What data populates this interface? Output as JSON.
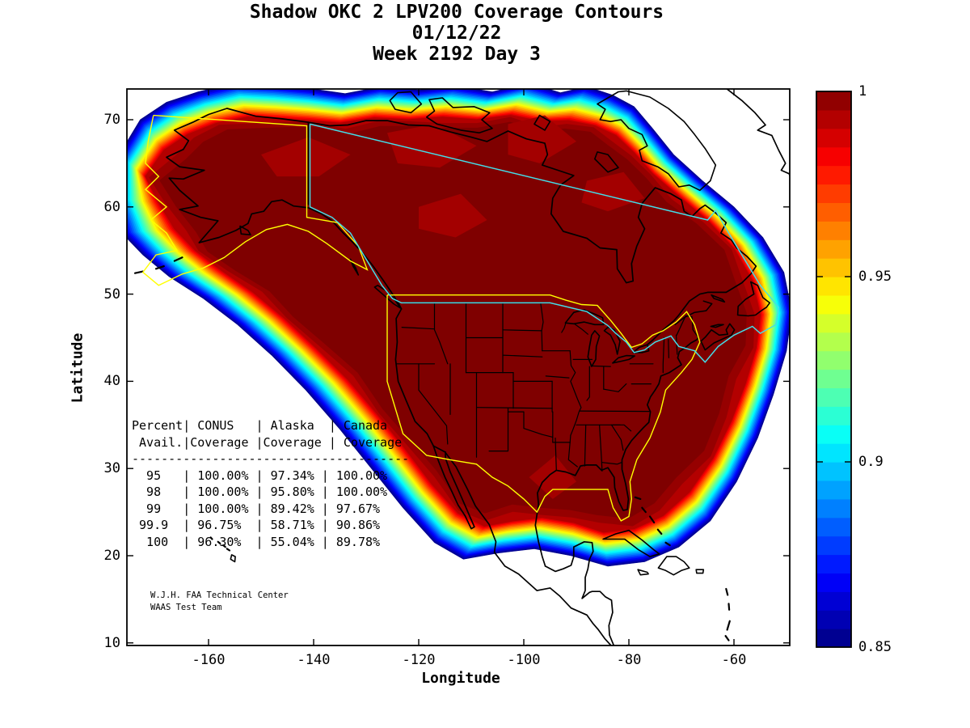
{
  "title": {
    "line1": "Shadow OKC 2 LPV200 Coverage Contours",
    "line2": "01/12/22",
    "line3": "Week 2192 Day 3"
  },
  "axes": {
    "xlabel": "Longitude",
    "ylabel": "Latitude",
    "xticks": [
      -160,
      -140,
      -120,
      -100,
      -80,
      -60
    ],
    "yticks": [
      70,
      60,
      50,
      40,
      30,
      20,
      10
    ],
    "xlim": [
      -175.5,
      -49.4
    ],
    "ylim": [
      9.7,
      73.5
    ]
  },
  "colorbar": {
    "min": 0.85,
    "max": 1.0,
    "n_bands": 30,
    "colormap": "jet",
    "ticks": [
      "1",
      "0.95",
      "0.9",
      "0.85"
    ],
    "tick_values": [
      1,
      0.95,
      0.9,
      0.85
    ]
  },
  "coverage_table": {
    "header_row1": [
      "Percent",
      "CONUS",
      "Alaska",
      "Canada"
    ],
    "header_row2": [
      "Avail.",
      "Coverage",
      "Coverage",
      "Coverage"
    ],
    "rows": [
      [
        "95",
        "100.00%",
        "97.34%",
        "100.00%"
      ],
      [
        "98",
        "100.00%",
        "95.80%",
        "100.00%"
      ],
      [
        "99",
        "100.00%",
        "89.42%",
        "97.67%"
      ],
      [
        "99.9",
        "96.75%",
        "58.71%",
        "90.86%"
      ],
      [
        "100",
        "96.30%",
        "55.04%",
        "89.78%"
      ]
    ]
  },
  "attribution": {
    "line1": "W.J.H. FAA Technical Center",
    "line2": "WAAS Test Team"
  },
  "chart_data": {
    "type": "filled_contour_map",
    "title": "Shadow OKC 2 LPV200 Coverage Contours",
    "date": "01/12/22",
    "week": 2192,
    "day": 3,
    "xlabel": "Longitude",
    "ylabel": "Latitude",
    "xlim": [
      -175.5,
      -49.4
    ],
    "ylim": [
      9.7,
      73.5
    ],
    "levels": {
      "min": 0.85,
      "max": 1.0,
      "step": 0.005
    },
    "colormap": "jet",
    "legend_position": "right-colorbar",
    "region_boundaries": [
      {
        "name": "CONUS",
        "color": "#FFFF00"
      },
      {
        "name": "Alaska",
        "color": "#FFFF00"
      },
      {
        "name": "Canada",
        "color": "#44DDE8"
      }
    ],
    "coverage_outer_contour": [
      [
        -177,
        66
      ],
      [
        -173,
        70
      ],
      [
        -168,
        72
      ],
      [
        -162,
        73.2
      ],
      [
        -155,
        74.2
      ],
      [
        -148,
        74
      ],
      [
        -141,
        73.6
      ],
      [
        -134,
        73
      ],
      [
        -127,
        73.8
      ],
      [
        -120,
        73.4
      ],
      [
        -113,
        73.9
      ],
      [
        -106,
        73.2
      ],
      [
        -99,
        74.2
      ],
      [
        -93,
        73.1
      ],
      [
        -88,
        73.8
      ],
      [
        -83,
        72.8
      ],
      [
        -79,
        71.5
      ],
      [
        -75.5,
        69
      ],
      [
        -71.5,
        66
      ],
      [
        -66,
        63
      ],
      [
        -60,
        60
      ],
      [
        -54.5,
        56.5
      ],
      [
        -50.5,
        52.5
      ],
      [
        -49,
        48
      ],
      [
        -50,
        43.5
      ],
      [
        -52.5,
        38.5
      ],
      [
        -55.5,
        33.5
      ],
      [
        -59.5,
        28.5
      ],
      [
        -64.5,
        24
      ],
      [
        -70.5,
        21
      ],
      [
        -77,
        19.3
      ],
      [
        -84,
        18.8
      ],
      [
        -91,
        20
      ],
      [
        -98,
        20.8
      ],
      [
        -105,
        20.3
      ],
      [
        -111.5,
        19.6
      ],
      [
        -117,
        21.5
      ],
      [
        -123,
        25.5
      ],
      [
        -129,
        30
      ],
      [
        -135,
        34.5
      ],
      [
        -141.5,
        39
      ],
      [
        -148,
        43
      ],
      [
        -154.5,
        46.5
      ],
      [
        -161,
        49.5
      ],
      [
        -167.5,
        52
      ],
      [
        -172.5,
        54.5
      ],
      [
        -176.5,
        57
      ],
      [
        -178.5,
        61
      ]
    ],
    "coverage_inner_contour": [
      [
        -172,
        63.5
      ],
      [
        -168.5,
        66.5
      ],
      [
        -164,
        68.3
      ],
      [
        -158.5,
        69.6
      ],
      [
        -152.5,
        70.3
      ],
      [
        -146.5,
        70.1
      ],
      [
        -141,
        69.9
      ],
      [
        -135,
        69.6
      ],
      [
        -128.5,
        70.2
      ],
      [
        -122,
        70
      ],
      [
        -115.5,
        70.3
      ],
      [
        -109,
        70
      ],
      [
        -102.5,
        70.5
      ],
      [
        -96.5,
        69.8
      ],
      [
        -91.5,
        69.9
      ],
      [
        -86.5,
        69.3
      ],
      [
        -82.5,
        68.2
      ],
      [
        -79,
        66.2
      ],
      [
        -75.5,
        63.8
      ],
      [
        -70.5,
        61.2
      ],
      [
        -65,
        58.4
      ],
      [
        -60,
        55.2
      ],
      [
        -56.5,
        51.5
      ],
      [
        -55,
        47.6
      ],
      [
        -55.8,
        43.8
      ],
      [
        -57.8,
        39.8
      ],
      [
        -60.5,
        35.5
      ],
      [
        -64,
        31.2
      ],
      [
        -68.5,
        27.3
      ],
      [
        -73.5,
        24.6
      ],
      [
        -79,
        23.1
      ],
      [
        -84.8,
        22.7
      ],
      [
        -90.5,
        23.8
      ],
      [
        -96.5,
        24.4
      ],
      [
        -102,
        24
      ],
      [
        -107.5,
        23.4
      ],
      [
        -112.5,
        24.9
      ],
      [
        -117.5,
        28.2
      ],
      [
        -122.5,
        32.2
      ],
      [
        -127.8,
        36.2
      ],
      [
        -133.5,
        40.2
      ],
      [
        -139.5,
        43.8
      ],
      [
        -145.5,
        47.2
      ],
      [
        -151.5,
        50.2
      ],
      [
        -157.5,
        52.7
      ],
      [
        -162.5,
        55
      ],
      [
        -166.5,
        57.5
      ],
      [
        -169.5,
        60.5
      ]
    ],
    "table": {
      "columns": [
        "Percent Avail.",
        "CONUS Coverage",
        "Alaska Coverage",
        "Canada Coverage"
      ],
      "rows": [
        [
          95,
          "100.00%",
          "97.34%",
          "100.00%"
        ],
        [
          98,
          "100.00%",
          "95.80%",
          "100.00%"
        ],
        [
          99,
          "100.00%",
          "89.42%",
          "97.67%"
        ],
        [
          99.9,
          "96.75%",
          "58.71%",
          "90.86%"
        ],
        [
          100,
          "96.30%",
          "55.04%",
          "89.78%"
        ]
      ]
    }
  }
}
